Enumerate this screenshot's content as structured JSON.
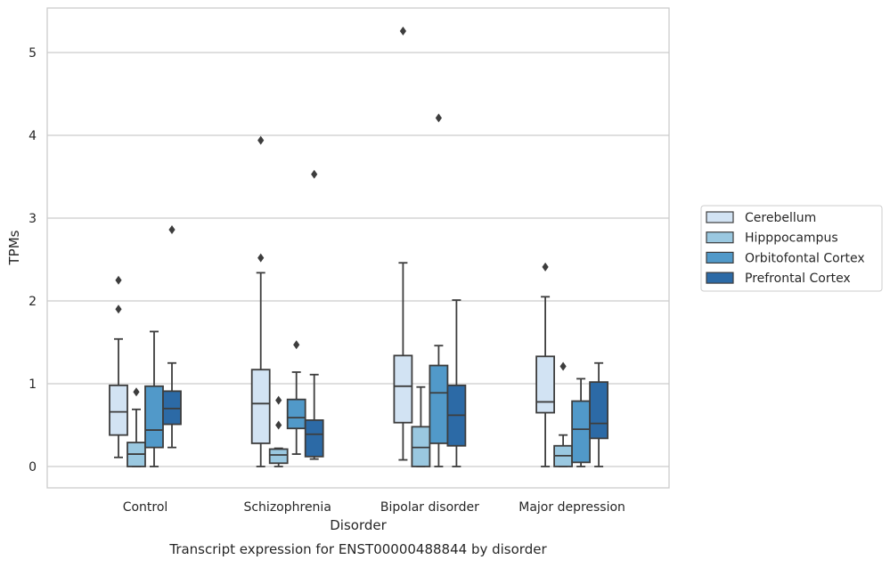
{
  "chart_data": {
    "type": "box",
    "title": "Transcript expression for ENST00000488844 by disorder",
    "xlabel": "Disorder",
    "ylabel": "TPMs",
    "ylim": [
      -0.25,
      5.55
    ],
    "yticks": [
      0,
      1,
      2,
      3,
      4,
      5
    ],
    "grid": "horizontal",
    "legend_position": "right-center",
    "categories": [
      "Control",
      "Schizophrenia",
      "Bipolar disorder",
      "Major depression"
    ],
    "series": [
      {
        "name": "Cerebellum",
        "color": "#d2e3f3",
        "boxes": [
          {
            "whisker_low": 0.11,
            "q1": 0.38,
            "median": 0.66,
            "q3": 0.98,
            "whisker_high": 1.54,
            "outliers": [
              1.9,
              2.25
            ]
          },
          {
            "whisker_low": 0.0,
            "q1": 0.28,
            "median": 0.76,
            "q3": 1.17,
            "whisker_high": 2.34,
            "outliers": [
              2.52,
              3.94
            ]
          },
          {
            "whisker_low": 0.08,
            "q1": 0.53,
            "median": 0.97,
            "q3": 1.34,
            "whisker_high": 2.46,
            "outliers": [
              5.26
            ]
          },
          {
            "whisker_low": 0.0,
            "q1": 0.65,
            "median": 0.78,
            "q3": 1.33,
            "whisker_high": 2.05,
            "outliers": [
              2.41
            ]
          }
        ]
      },
      {
        "name": "Hipppocampus",
        "color": "#9ac8e0",
        "boxes": [
          {
            "whisker_low": 0.0,
            "q1": 0.0,
            "median": 0.15,
            "q3": 0.29,
            "whisker_high": 0.69,
            "outliers": [
              0.9
            ]
          },
          {
            "whisker_low": 0.0,
            "q1": 0.04,
            "median": 0.14,
            "q3": 0.21,
            "whisker_high": 0.22,
            "outliers": [
              0.5,
              0.8
            ]
          },
          {
            "whisker_low": 0.0,
            "q1": 0.0,
            "median": 0.23,
            "q3": 0.48,
            "whisker_high": 0.96,
            "outliers": []
          },
          {
            "whisker_low": 0.0,
            "q1": 0.0,
            "median": 0.13,
            "q3": 0.25,
            "whisker_high": 0.38,
            "outliers": [
              1.21
            ]
          }
        ]
      },
      {
        "name": "Orbitofontal Cortex",
        "color": "#5199c9",
        "boxes": [
          {
            "whisker_low": 0.0,
            "q1": 0.23,
            "median": 0.44,
            "q3": 0.97,
            "whisker_high": 1.63,
            "outliers": []
          },
          {
            "whisker_low": 0.15,
            "q1": 0.46,
            "median": 0.59,
            "q3": 0.81,
            "whisker_high": 1.14,
            "outliers": [
              1.47
            ]
          },
          {
            "whisker_low": 0.0,
            "q1": 0.28,
            "median": 0.89,
            "q3": 1.22,
            "whisker_high": 1.46,
            "outliers": [
              4.21
            ]
          },
          {
            "whisker_low": 0.0,
            "q1": 0.05,
            "median": 0.45,
            "q3": 0.79,
            "whisker_high": 1.06,
            "outliers": []
          }
        ]
      },
      {
        "name": "Prefrontal Cortex",
        "color": "#2c6aa6",
        "boxes": [
          {
            "whisker_low": 0.23,
            "q1": 0.51,
            "median": 0.7,
            "q3": 0.91,
            "whisker_high": 1.25,
            "outliers": [
              2.86
            ]
          },
          {
            "whisker_low": 0.09,
            "q1": 0.12,
            "median": 0.39,
            "q3": 0.56,
            "whisker_high": 1.11,
            "outliers": [
              3.53
            ]
          },
          {
            "whisker_low": 0.0,
            "q1": 0.25,
            "median": 0.62,
            "q3": 0.98,
            "whisker_high": 2.01,
            "outliers": []
          },
          {
            "whisker_low": 0.0,
            "q1": 0.34,
            "median": 0.52,
            "q3": 1.02,
            "whisker_high": 1.25,
            "outliers": []
          }
        ]
      }
    ]
  },
  "style": {
    "background": "#ffffff",
    "gridColor": "#cccccc",
    "lineColor": "#3d3d3d",
    "textColor": "#262626"
  }
}
